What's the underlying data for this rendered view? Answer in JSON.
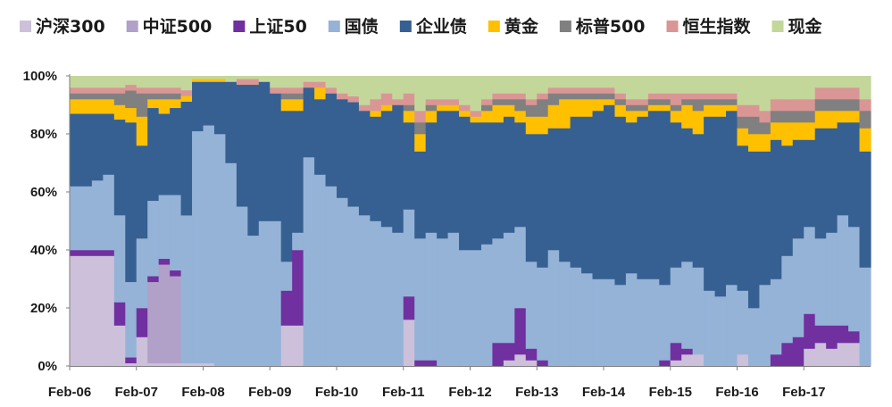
{
  "chart_data": {
    "type": "area",
    "stacked": true,
    "percent": true,
    "legend_position": "top",
    "grid": false,
    "ylim": [
      0,
      100
    ],
    "yticks": [
      "0%",
      "20%",
      "40%",
      "60%",
      "80%",
      "100%"
    ],
    "xticks": [
      "Feb-06",
      "Feb-07",
      "Feb-08",
      "Feb-09",
      "Feb-10",
      "Feb-11",
      "Feb-12",
      "Feb-13",
      "Feb-14",
      "Feb-15",
      "Feb-16",
      "Feb-17"
    ],
    "x": [
      "Feb-06",
      "Apr-06",
      "Jun-06",
      "Aug-06",
      "Oct-06",
      "Dec-06",
      "Feb-07",
      "Apr-07",
      "Jun-07",
      "Aug-07",
      "Oct-07",
      "Dec-07",
      "Feb-08",
      "Apr-08",
      "Jun-08",
      "Aug-08",
      "Oct-08",
      "Dec-08",
      "Feb-09",
      "Apr-09",
      "Jun-09",
      "Aug-09",
      "Oct-09",
      "Dec-09",
      "Feb-10",
      "Apr-10",
      "Jun-10",
      "Aug-10",
      "Oct-10",
      "Dec-10",
      "Feb-11",
      "Apr-11",
      "Jun-11",
      "Aug-11",
      "Oct-11",
      "Dec-11",
      "Feb-12",
      "Apr-12",
      "Jun-12",
      "Aug-12",
      "Oct-12",
      "Dec-12",
      "Feb-13",
      "Apr-13",
      "Jun-13",
      "Aug-13",
      "Oct-13",
      "Dec-13",
      "Feb-14",
      "Apr-14",
      "Jun-14",
      "Aug-14",
      "Oct-14",
      "Dec-14",
      "Feb-15",
      "Apr-15",
      "Jun-15",
      "Aug-15",
      "Oct-15",
      "Dec-15",
      "Feb-16",
      "Apr-16",
      "Jun-16",
      "Aug-16",
      "Oct-16",
      "Dec-16",
      "Feb-17",
      "Apr-17",
      "Jun-17",
      "Aug-17",
      "Oct-17",
      "Dec-17"
    ],
    "series": [
      {
        "name": "沪深300",
        "color": "#ccc0da",
        "values": [
          38,
          38,
          38,
          38,
          14,
          1,
          10,
          1,
          1,
          1,
          1,
          1,
          1,
          0,
          0,
          0,
          0,
          0,
          0,
          14,
          14,
          0,
          0,
          0,
          0,
          0,
          0,
          0,
          0,
          0,
          16,
          0,
          0,
          0,
          0,
          0,
          0,
          0,
          0,
          2,
          4,
          2,
          0,
          0,
          0,
          0,
          0,
          0,
          0,
          0,
          0,
          0,
          0,
          0,
          2,
          4,
          4,
          0,
          0,
          0,
          4,
          0,
          0,
          0,
          0,
          0,
          6,
          8,
          6,
          8,
          8,
          0
        ]
      },
      {
        "name": "中证500",
        "color": "#b1a0c7",
        "values": [
          0,
          0,
          0,
          0,
          0,
          0,
          0,
          28,
          34,
          30,
          0,
          0,
          0,
          0,
          0,
          0,
          0,
          0,
          0,
          0,
          0,
          0,
          0,
          0,
          0,
          0,
          0,
          0,
          0,
          0,
          0,
          0,
          0,
          0,
          0,
          0,
          0,
          0,
          0,
          0,
          0,
          0,
          0,
          0,
          0,
          0,
          0,
          0,
          0,
          0,
          0,
          0,
          0,
          0,
          0,
          0,
          0,
          0,
          0,
          0,
          0,
          0,
          0,
          0,
          0,
          0,
          0,
          0,
          0,
          0,
          0,
          0
        ]
      },
      {
        "name": "上证50",
        "color": "#7030a0",
        "values": [
          2,
          2,
          2,
          2,
          8,
          2,
          10,
          2,
          2,
          2,
          0,
          0,
          0,
          0,
          0,
          0,
          0,
          0,
          0,
          12,
          26,
          0,
          0,
          0,
          0,
          0,
          0,
          0,
          0,
          0,
          8,
          2,
          2,
          0,
          0,
          0,
          0,
          0,
          8,
          6,
          16,
          4,
          2,
          0,
          0,
          0,
          0,
          0,
          0,
          0,
          0,
          0,
          0,
          2,
          6,
          2,
          0,
          0,
          0,
          0,
          0,
          0,
          0,
          4,
          8,
          10,
          12,
          6,
          8,
          6,
          4,
          0
        ]
      },
      {
        "name": "国债",
        "color": "#95b3d7",
        "values": [
          22,
          22,
          24,
          26,
          30,
          26,
          24,
          26,
          22,
          26,
          52,
          80,
          82,
          80,
          70,
          55,
          45,
          50,
          50,
          10,
          6,
          72,
          66,
          62,
          58,
          55,
          52,
          50,
          48,
          46,
          30,
          42,
          44,
          44,
          46,
          40,
          40,
          42,
          36,
          38,
          28,
          30,
          32,
          40,
          36,
          34,
          32,
          30,
          30,
          28,
          32,
          30,
          30,
          26,
          26,
          30,
          30,
          26,
          24,
          28,
          22,
          20,
          28,
          26,
          30,
          34,
          30,
          30,
          32,
          38,
          36,
          34
        ]
      },
      {
        "name": "企业债",
        "color": "#366092",
        "values": [
          25,
          25,
          23,
          21,
          33,
          55,
          32,
          32,
          28,
          30,
          40,
          17,
          15,
          18,
          28,
          42,
          52,
          48,
          44,
          52,
          42,
          24,
          26,
          32,
          34,
          36,
          36,
          36,
          40,
          44,
          30,
          30,
          38,
          44,
          42,
          46,
          44,
          42,
          40,
          40,
          36,
          44,
          46,
          42,
          46,
          52,
          54,
          58,
          60,
          58,
          52,
          56,
          58,
          60,
          50,
          46,
          46,
          60,
          62,
          60,
          50,
          54,
          46,
          48,
          38,
          34,
          30,
          38,
          36,
          32,
          36,
          40
        ]
      },
      {
        "name": "黄金",
        "color": "#ffc000",
        "values": [
          5,
          5,
          5,
          5,
          5,
          5,
          10,
          3,
          5,
          3,
          2,
          1,
          1,
          1,
          0,
          0,
          0,
          0,
          0,
          4,
          4,
          0,
          4,
          0,
          0,
          0,
          0,
          2,
          2,
          0,
          4,
          6,
          4,
          2,
          2,
          2,
          2,
          4,
          6,
          4,
          4,
          6,
          6,
          8,
          10,
          6,
          6,
          4,
          2,
          4,
          4,
          2,
          2,
          2,
          4,
          8,
          8,
          4,
          4,
          2,
          6,
          6,
          6,
          6,
          8,
          6,
          6,
          6,
          6,
          4,
          4,
          8
        ]
      },
      {
        "name": "标普500",
        "color": "#808080",
        "values": [
          2,
          2,
          2,
          2,
          4,
          6,
          8,
          2,
          2,
          2,
          0,
          0,
          0,
          0,
          0,
          0,
          0,
          0,
          0,
          2,
          2,
          0,
          0,
          0,
          0,
          0,
          0,
          0,
          0,
          0,
          2,
          4,
          2,
          0,
          0,
          0,
          0,
          2,
          2,
          2,
          4,
          4,
          6,
          4,
          2,
          2,
          2,
          2,
          2,
          2,
          2,
          2,
          2,
          2,
          2,
          2,
          4,
          2,
          2,
          2,
          4,
          6,
          4,
          4,
          4,
          4,
          4,
          4,
          4,
          4,
          4,
          6
        ]
      },
      {
        "name": "恒生指数",
        "color": "#da9694",
        "values": [
          2,
          2,
          2,
          2,
          2,
          2,
          2,
          2,
          2,
          2,
          2,
          0,
          0,
          0,
          0,
          2,
          2,
          0,
          2,
          2,
          2,
          2,
          2,
          2,
          2,
          2,
          2,
          4,
          4,
          2,
          4,
          4,
          2,
          2,
          2,
          2,
          2,
          2,
          2,
          2,
          2,
          2,
          2,
          2,
          2,
          2,
          2,
          2,
          2,
          2,
          2,
          2,
          2,
          2,
          4,
          2,
          2,
          2,
          2,
          2,
          4,
          4,
          4,
          4,
          4,
          4,
          4,
          4,
          4,
          4,
          4,
          4
        ]
      },
      {
        "name": "现金",
        "color": "#c4d79b",
        "values": [
          4,
          4,
          4,
          4,
          4,
          3,
          4,
          4,
          4,
          4,
          5,
          1,
          1,
          1,
          2,
          1,
          1,
          2,
          4,
          4,
          4,
          2,
          2,
          4,
          6,
          7,
          10,
          8,
          6,
          8,
          6,
          12,
          8,
          8,
          8,
          10,
          12,
          8,
          6,
          6,
          6,
          8,
          6,
          4,
          4,
          4,
          4,
          4,
          4,
          6,
          8,
          8,
          6,
          6,
          6,
          6,
          6,
          6,
          6,
          6,
          10,
          10,
          12,
          8,
          8,
          8,
          8,
          4,
          4,
          4,
          4,
          8
        ]
      }
    ]
  }
}
